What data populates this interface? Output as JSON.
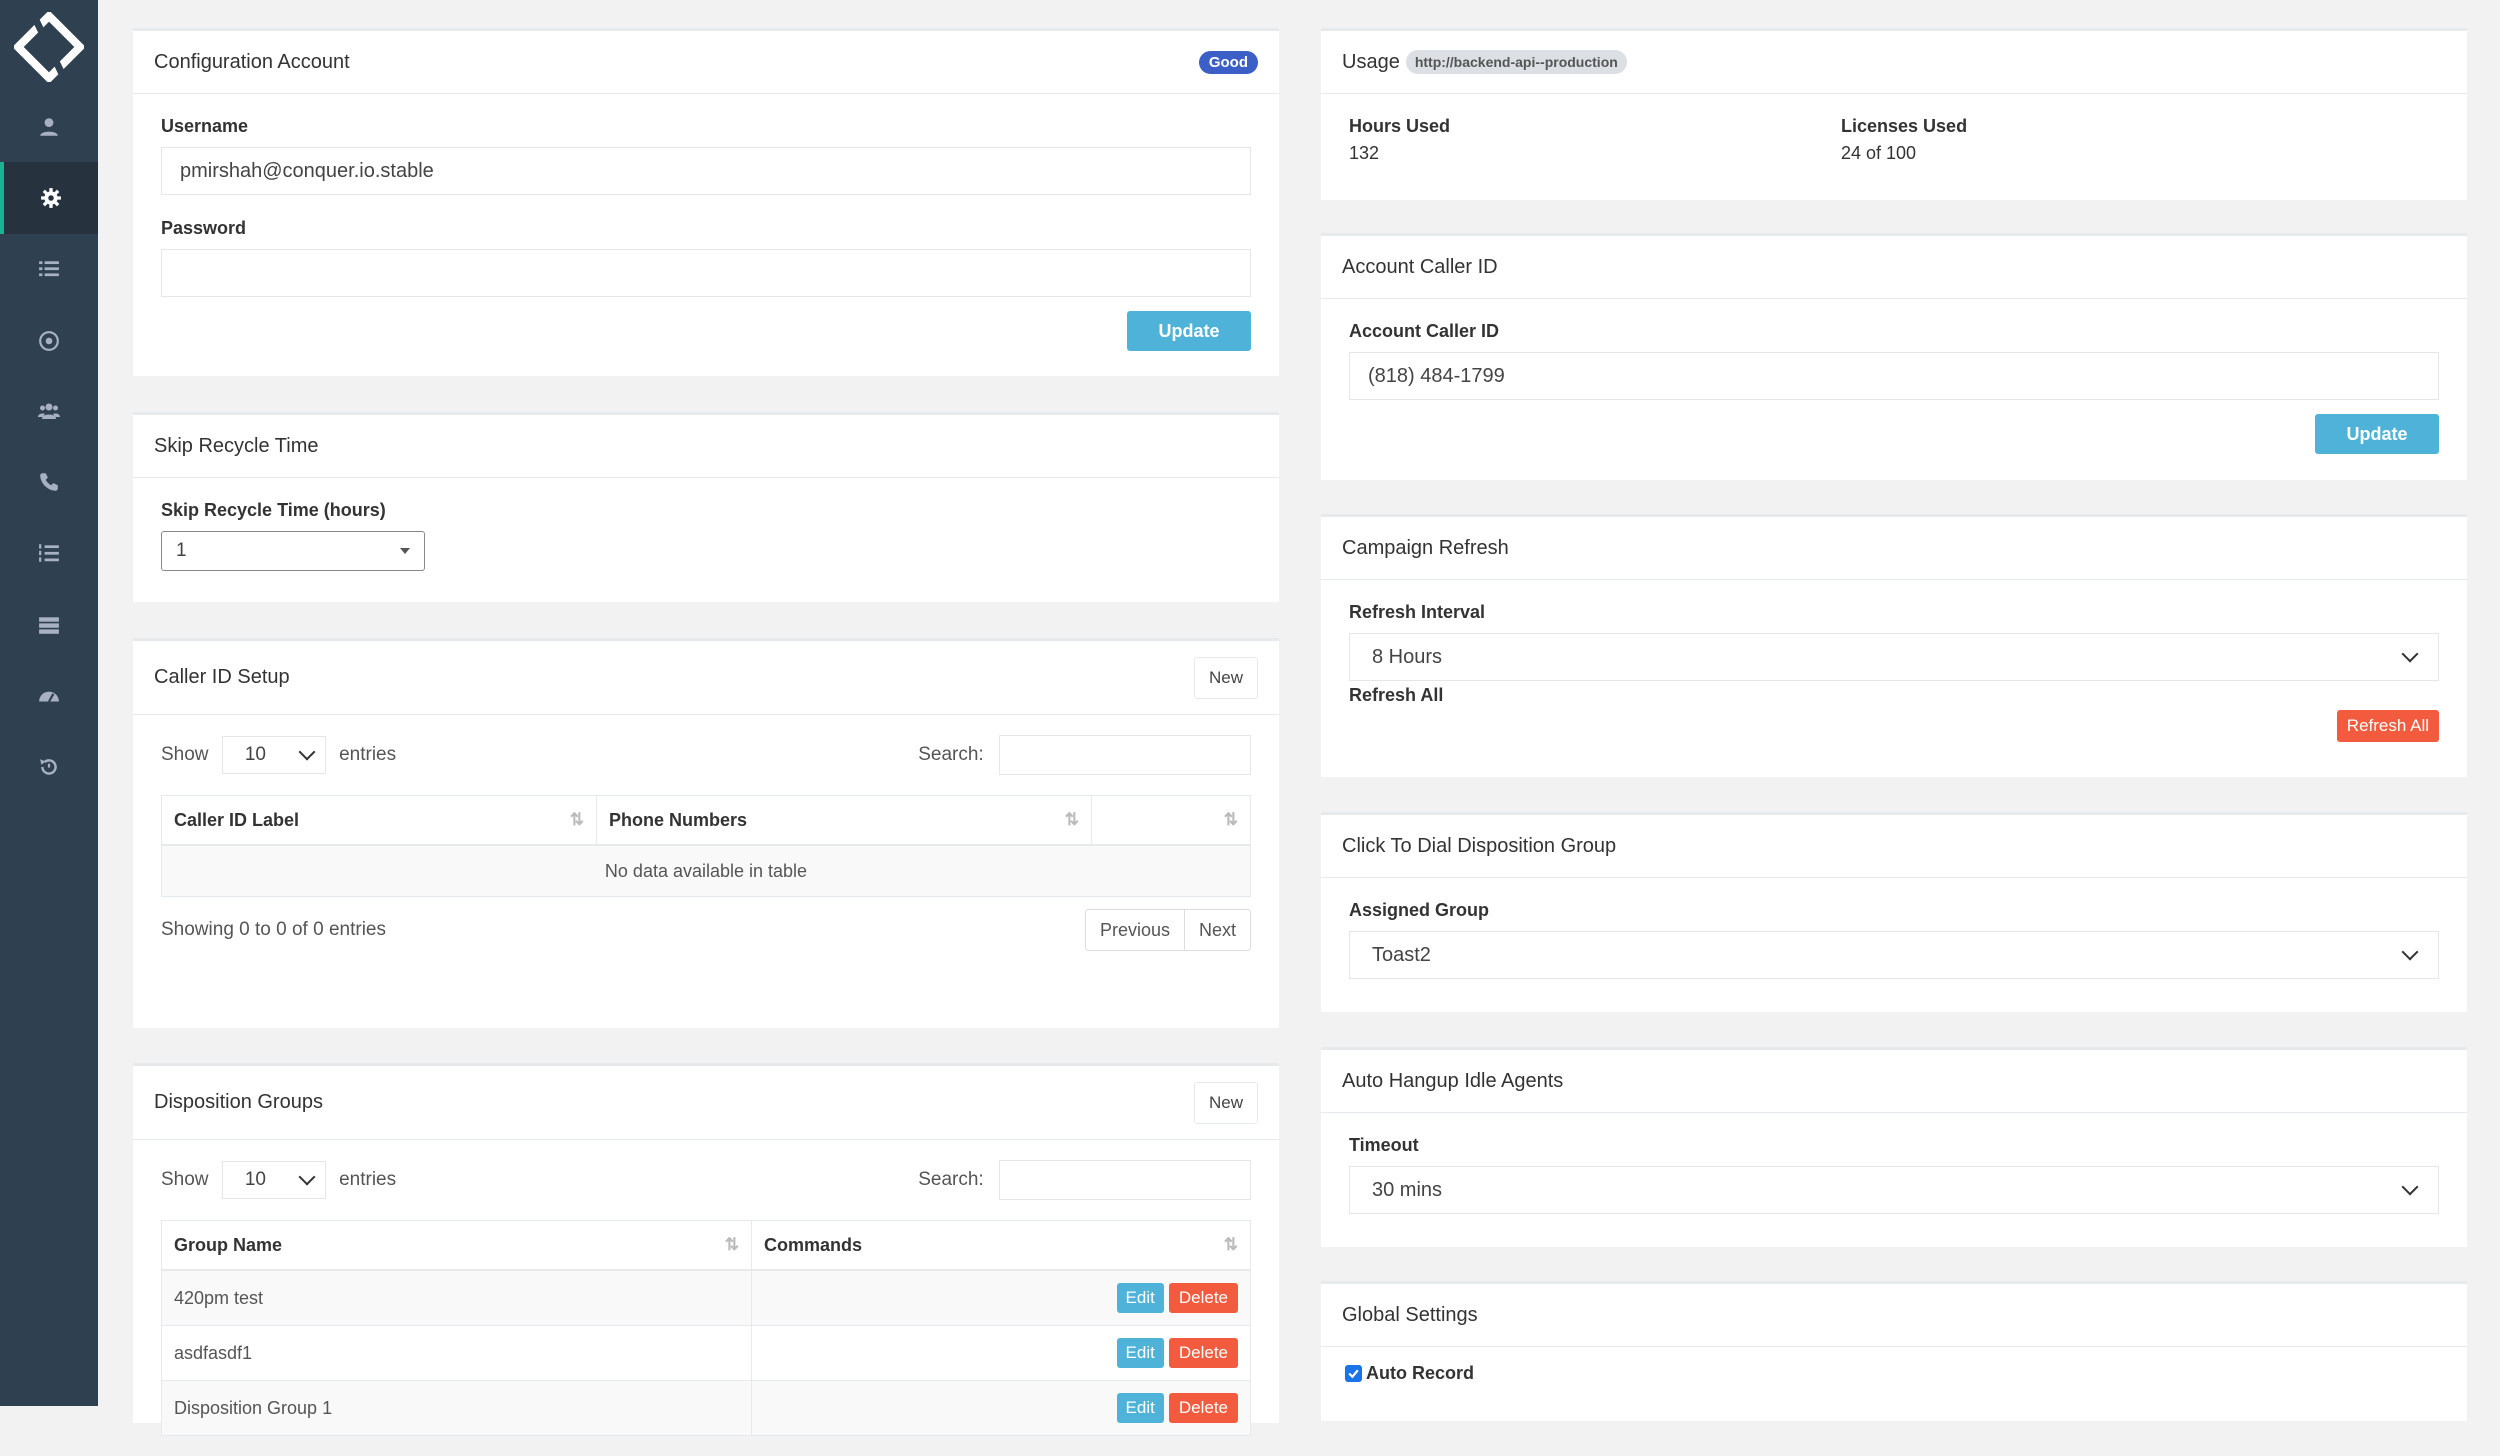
{
  "sidebar": {
    "icons": [
      "logo-icon",
      "user-icon",
      "gear-icon",
      "list-icon",
      "target-icon",
      "users-icon",
      "phone-icon",
      "ordered-list-icon",
      "server-icon",
      "dashboard-icon",
      "history-icon"
    ],
    "accent": "#2f4050"
  },
  "config_account": {
    "title": "Configuration Account",
    "badge": "Good",
    "username_label": "Username",
    "username_value": "pmirshah@conquer.io.stable",
    "password_label": "Password",
    "password_value": "",
    "update_label": "Update"
  },
  "skip_recycle": {
    "title": "Skip Recycle Time",
    "field_label": "Skip Recycle Time (hours)",
    "value": "1"
  },
  "caller_id_setup": {
    "title": "Caller ID Setup",
    "new_label": "New",
    "show_label": "Show",
    "entries_value": "10",
    "entries_label": "entries",
    "search_label": "Search:",
    "columns": [
      "Caller ID Label",
      "Phone Numbers",
      ""
    ],
    "empty_text": "No data available in table",
    "info_text": "Showing 0 to 0 of 0 entries",
    "prev_label": "Previous",
    "next_label": "Next"
  },
  "disposition_groups": {
    "title": "Disposition Groups",
    "new_label": "New",
    "show_label": "Show",
    "entries_value": "10",
    "entries_label": "entries",
    "search_label": "Search:",
    "columns": [
      "Group Name",
      "Commands"
    ],
    "rows": [
      {
        "name": "420pm test",
        "edit": "Edit",
        "delete": "Delete"
      },
      {
        "name": "asdfasdf1",
        "edit": "Edit",
        "delete": "Delete"
      },
      {
        "name": "Disposition Group 1",
        "edit": "Edit",
        "delete": "Delete"
      }
    ]
  },
  "usage": {
    "title": "Usage",
    "url": "http://backend-api--production",
    "hours_label": "Hours Used",
    "hours_value": "132",
    "licenses_label": "Licenses Used",
    "licenses_value": "24 of 100"
  },
  "account_caller_id": {
    "title": "Account Caller ID",
    "field_label": "Account Caller ID",
    "value": "(818) 484-1799",
    "update_label": "Update"
  },
  "campaign_refresh": {
    "title": "Campaign Refresh",
    "interval_label": "Refresh Interval",
    "interval_value": "8 Hours",
    "refresh_all_label": "Refresh All",
    "refresh_all_button": "Refresh All"
  },
  "click_to_dial": {
    "title": "Click To Dial Disposition Group",
    "field_label": "Assigned Group",
    "value": "Toast2"
  },
  "auto_hangup": {
    "title": "Auto Hangup Idle Agents",
    "field_label": "Timeout",
    "value": "30 mins"
  },
  "global_settings": {
    "title": "Global Settings",
    "auto_record_label": "Auto Record",
    "auto_record_checked": true
  }
}
